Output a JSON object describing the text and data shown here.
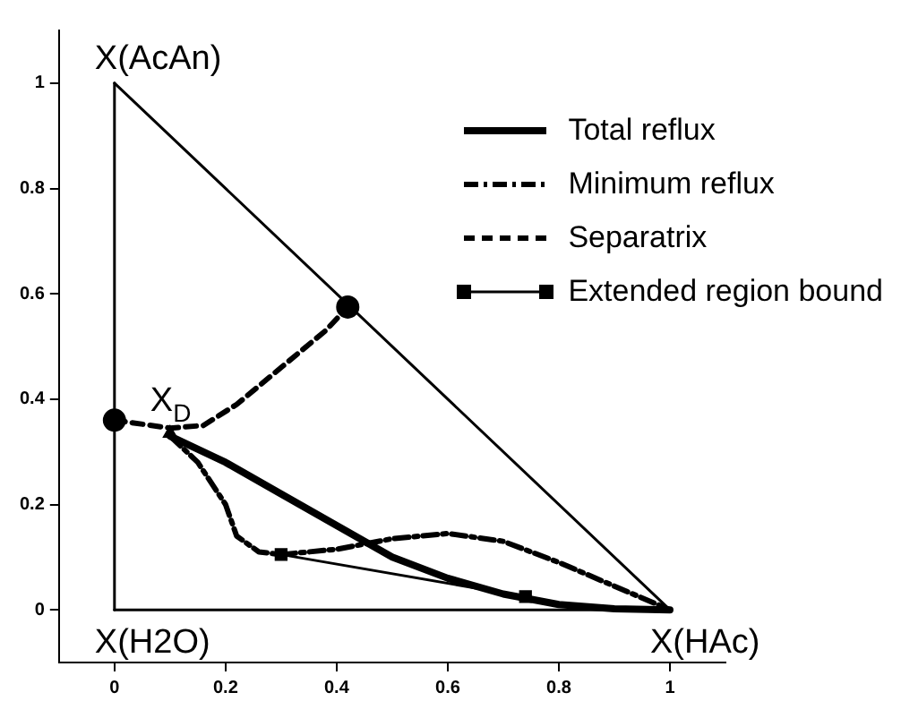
{
  "chart_data": {
    "type": "line",
    "xlim": [
      -0.1,
      1.1
    ],
    "ylim": [
      -0.1,
      1.1
    ],
    "xticks": [
      0,
      0.2,
      0.4,
      0.6,
      0.8,
      1
    ],
    "yticks": [
      0,
      0.2,
      0.4,
      0.6,
      0.8,
      1
    ],
    "grid": false,
    "legend": "top right",
    "series": [
      {
        "name": "Total reflux",
        "color": "#000000",
        "line_style": "solid",
        "marker": "none",
        "x": [
          0.1,
          0.2,
          0.3,
          0.4,
          0.5,
          0.6,
          0.7,
          0.8,
          0.9,
          1
        ],
        "values": [
          0.33,
          0.28,
          0.22,
          0.16,
          0.1,
          0.06,
          0.03,
          0.01,
          0.002,
          0
        ]
      },
      {
        "name": "Minimum reflux",
        "color": "#000000",
        "line_style": "dashdot",
        "marker": "none",
        "x": [
          0.1,
          0.15,
          0.2,
          0.22,
          0.26,
          0.3,
          0.4,
          0.5,
          0.6,
          0.7,
          0.8,
          0.9,
          1
        ],
        "values": [
          0.33,
          0.28,
          0.2,
          0.14,
          0.11,
          0.105,
          0.115,
          0.135,
          0.145,
          0.13,
          0.09,
          0.045,
          0
        ]
      },
      {
        "name": "Separatrix",
        "color": "#000000",
        "line_style": "dashed",
        "marker": "none",
        "x": [
          0,
          0.1,
          0.16,
          0.22,
          0.3,
          0.38,
          0.42
        ],
        "values": [
          0.36,
          0.345,
          0.35,
          0.39,
          0.46,
          0.53,
          0.575
        ]
      },
      {
        "name": "Extended region bound",
        "color": "#000000",
        "line_style": "solid",
        "marker": "square",
        "x": [
          0.3,
          0.74
        ],
        "values": [
          0.105,
          0.025
        ]
      },
      {
        "color": "#000000",
        "line_style": "solid",
        "marker": "none",
        "x": [
          0,
          1
        ],
        "values": [
          1,
          0
        ]
      },
      {
        "color": "#000000",
        "line_style": "solid",
        "marker": "none",
        "x": [
          0,
          1
        ],
        "values": [
          0,
          0
        ]
      },
      {
        "color": "#000000",
        "line_style": "solid",
        "marker": "none",
        "x": [
          0,
          0
        ],
        "values": [
          0,
          1
        ]
      },
      {
        "type": "scatter",
        "color": "#000000",
        "marker": "circle",
        "x": [
          0,
          0.42
        ],
        "values": [
          0.36,
          0.575
        ]
      },
      {
        "type": "scatter",
        "color": "#000000",
        "marker": "triangle",
        "x": [
          0.1
        ],
        "values": [
          0.335
        ]
      }
    ],
    "annotations": [
      {
        "text": "X(AcAn)",
        "x": 0,
        "y": 1
      },
      {
        "text": "X(H2O)",
        "x": 0,
        "y": 0
      },
      {
        "text": "X(HAc)",
        "x": 1,
        "y": 0
      },
      {
        "text": "X$_{D}$",
        "x": 0.1,
        "y": 0.35
      }
    ]
  }
}
